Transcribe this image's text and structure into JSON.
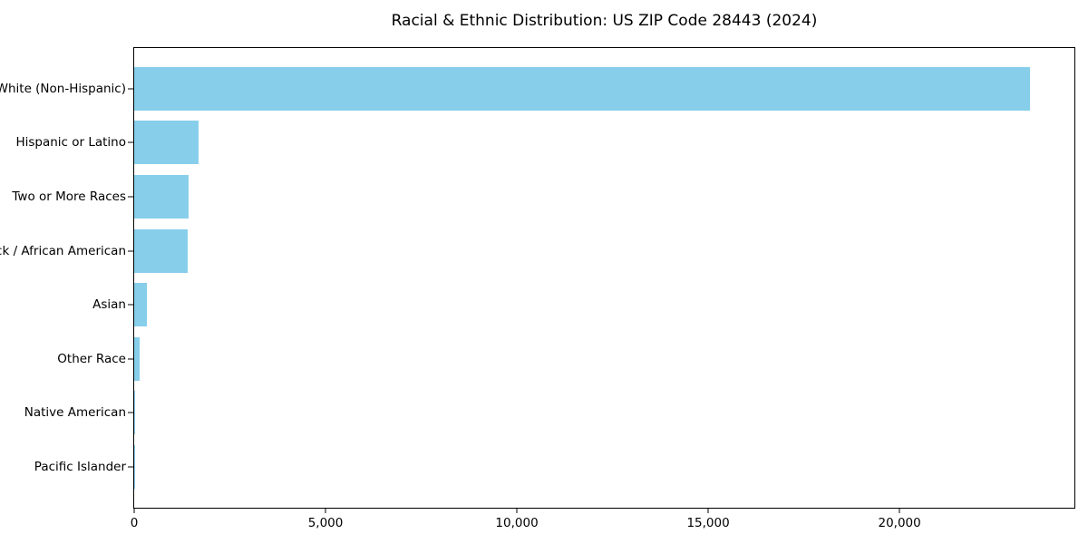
{
  "chart_data": {
    "type": "bar",
    "orientation": "horizontal",
    "title": "Racial & Ethnic Distribution: US ZIP Code 28443 (2024)",
    "xlabel": "",
    "ylabel": "",
    "categories": [
      "White (Non-Hispanic)",
      "Hispanic or Latino",
      "Two or More Races",
      "Black / African American",
      "Asian",
      "Other Race",
      "Native American",
      "Pacific Islander"
    ],
    "values": [
      23400,
      1680,
      1430,
      1390,
      320,
      140,
      30,
      3
    ],
    "xlim": [
      0,
      24570
    ],
    "xticks": [
      0,
      5000,
      10000,
      15000,
      20000
    ],
    "xtick_labels": [
      "0",
      "5,000",
      "10,000",
      "15,000",
      "20,000"
    ],
    "bar_color": "#87CEEB",
    "axis_color": "#000000",
    "grid": false,
    "legend_position": "none"
  }
}
